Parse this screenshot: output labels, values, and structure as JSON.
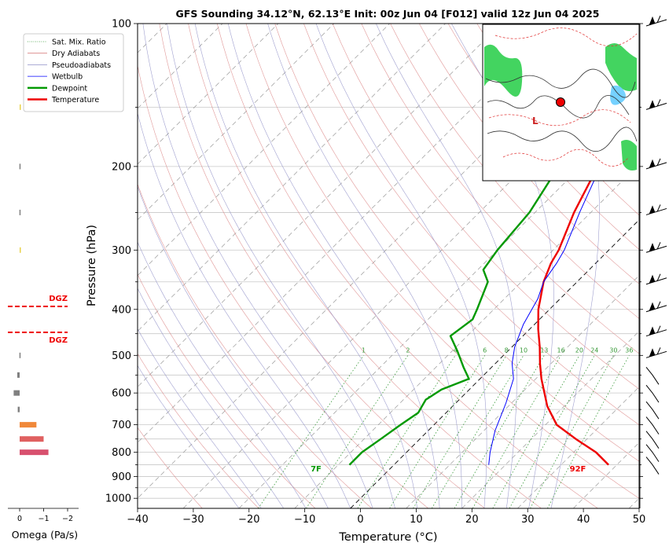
{
  "chart_data": {
    "type": "line",
    "title": "GFS Sounding 34.12°N, 62.13°E Init: 00z Jun 04 [F012] valid 12z Jun 04 2025",
    "xlabel": "Temperature (°C)",
    "ylabel": "Pressure (hPa)",
    "xlim": [
      -40,
      50
    ],
    "ylim": [
      1050,
      100
    ],
    "y_scale": "log",
    "x_ticks": [
      -40,
      -30,
      -20,
      -10,
      0,
      10,
      20,
      30,
      40,
      50
    ],
    "y_ticks": [
      1000,
      900,
      800,
      700,
      600,
      500,
      400,
      300,
      200,
      100
    ],
    "legend": {
      "placement": "top-left",
      "entries": [
        {
          "label": "Sat. Mix. Ratio",
          "color": "#3a9a3a",
          "style": "dotted"
        },
        {
          "label": "Dry Adiabats",
          "color": "#d98080",
          "style": "solid"
        },
        {
          "label": "Pseudoadiabats",
          "color": "#9090c8",
          "style": "solid"
        },
        {
          "label": "Wetbulb",
          "color": "#0000ff",
          "style": "solid"
        },
        {
          "label": "Dewpoint",
          "color": "#009900",
          "style": "solid"
        },
        {
          "label": "Temperature",
          "color": "#ee0000",
          "style": "solid"
        }
      ]
    },
    "series": [
      {
        "name": "Temperature",
        "color": "#ee0000",
        "points": [
          [
            38.5,
            850
          ],
          [
            34,
            800
          ],
          [
            28,
            750
          ],
          [
            22,
            700
          ],
          [
            17,
            640
          ],
          [
            11,
            560
          ],
          [
            8,
            520
          ],
          [
            5,
            480
          ],
          [
            1.5,
            440
          ],
          [
            -2,
            400
          ],
          [
            -6,
            350
          ],
          [
            -8,
            320
          ],
          [
            -9,
            300
          ],
          [
            -13,
            250
          ],
          [
            -17,
            200
          ],
          [
            -21,
            165
          ],
          [
            -23,
            150
          ],
          [
            -26,
            130
          ],
          [
            -29,
            100
          ]
        ]
      },
      {
        "name": "Dewpoint",
        "color": "#009900",
        "points": [
          [
            -8,
            850
          ],
          [
            -8,
            800
          ],
          [
            -7,
            750
          ],
          [
            -6,
            700
          ],
          [
            -5,
            660
          ],
          [
            -6,
            620
          ],
          [
            -5,
            590
          ],
          [
            -2,
            560
          ],
          [
            -5,
            530
          ],
          [
            -9,
            490
          ],
          [
            -13,
            455
          ],
          [
            -12,
            420
          ],
          [
            -13,
            400
          ],
          [
            -16,
            350
          ],
          [
            -19,
            330
          ],
          [
            -20,
            300
          ],
          [
            -21,
            250
          ],
          [
            -24,
            200
          ],
          [
            -26,
            165
          ],
          [
            -29,
            150
          ],
          [
            -35,
            100
          ]
        ]
      },
      {
        "name": "Wetbulb",
        "color": "#0000ff",
        "points": [
          [
            17,
            850
          ],
          [
            15,
            800
          ],
          [
            12,
            720
          ],
          [
            9,
            630
          ],
          [
            6,
            560
          ],
          [
            3,
            520
          ],
          [
            0.5,
            480
          ],
          [
            -2,
            430
          ],
          [
            -4,
            380
          ],
          [
            -6,
            350
          ],
          [
            -7,
            320
          ],
          [
            -8,
            300
          ],
          [
            -12,
            250
          ],
          [
            -16.5,
            200
          ],
          [
            -20,
            170
          ],
          [
            -23,
            150
          ],
          [
            -26,
            130
          ],
          [
            -29,
            100
          ]
        ]
      }
    ],
    "mixing_ratio_labels": [
      "1",
      "2",
      "4",
      "6",
      "8",
      "10",
      "13",
      "16",
      "20",
      "24",
      "30",
      "36"
    ],
    "surface_labels": {
      "temperature": "92F",
      "dewpoint": "7F"
    },
    "omega_panel": {
      "xlabel": "Omega (Pa/s)",
      "x_ticks": [
        "0",
        "−1",
        "−2"
      ],
      "dgz_label": "DGZ",
      "dgz_color": "#ee0000",
      "bars": [
        {
          "p": 150,
          "value": -0.02,
          "color": "#e8d24a"
        },
        {
          "p": 200,
          "value": 0.01,
          "color": "#808080"
        },
        {
          "p": 250,
          "value": 0.01,
          "color": "#808080"
        },
        {
          "p": 300,
          "value": -0.01,
          "color": "#e8d24a"
        },
        {
          "p": 500,
          "value": 0.01,
          "color": "#808080"
        },
        {
          "p": 550,
          "value": 0.1,
          "color": "#808080"
        },
        {
          "p": 600,
          "value": 0.25,
          "color": "#808080"
        },
        {
          "p": 650,
          "value": 0.08,
          "color": "#808080"
        },
        {
          "p": 700,
          "value": -0.7,
          "color": "#f0883a"
        },
        {
          "p": 750,
          "value": -1.0,
          "color": "#e06060"
        },
        {
          "p": 800,
          "value": -1.2,
          "color": "#d8506e"
        }
      ]
    },
    "wind_barbs": {
      "color": "#000000",
      "levels": [
        100,
        150,
        200,
        250,
        300,
        350,
        400,
        450,
        500,
        550,
        600,
        650,
        700,
        750,
        800,
        850
      ]
    }
  }
}
